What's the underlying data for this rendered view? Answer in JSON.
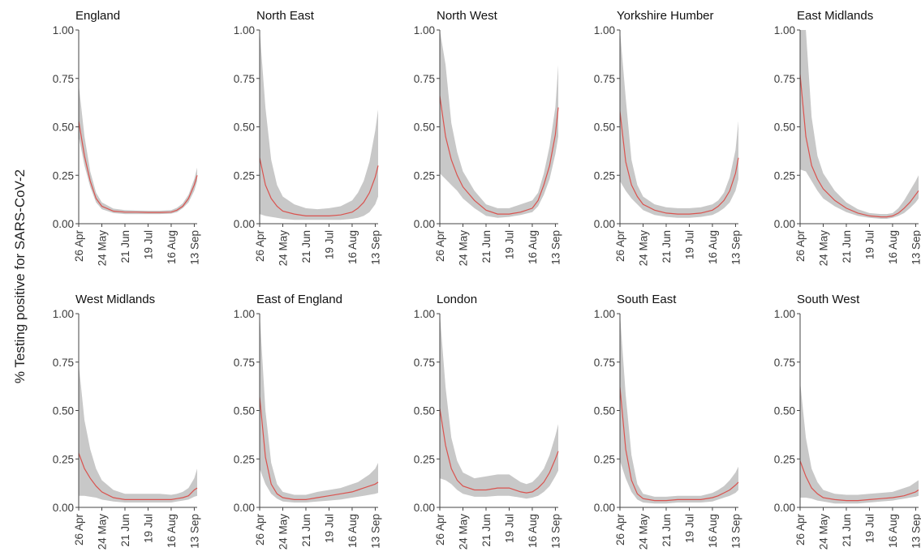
{
  "chart_data": {
    "type": "area",
    "ylabel": "% Testing positive for SARS-CoV-2",
    "ylim": [
      0,
      1
    ],
    "y_ticks": [
      "0.00",
      "0.25",
      "0.50",
      "0.75",
      "1.00"
    ],
    "x_tick_labels": [
      "26 Apr",
      "24 May",
      "21 Jun",
      "19 Jul",
      "16 Aug",
      "13 Sep"
    ],
    "x_tick_weeks": [
      0,
      4,
      8,
      12,
      16,
      20
    ],
    "x_range_weeks": [
      0,
      20.5
    ],
    "grid": false,
    "band_color": "#c8c8c8",
    "line_color": "#d9534f",
    "panels": [
      {
        "title": "England",
        "x": [
          0,
          1,
          2,
          3,
          4,
          6,
          8,
          10,
          12,
          14,
          16,
          17,
          18,
          19,
          20,
          20.5
        ],
        "y": [
          0.53,
          0.35,
          0.22,
          0.13,
          0.09,
          0.065,
          0.06,
          0.06,
          0.058,
          0.058,
          0.06,
          0.07,
          0.09,
          0.13,
          0.2,
          0.25
        ],
        "lower": [
          0.45,
          0.3,
          0.19,
          0.11,
          0.075,
          0.055,
          0.05,
          0.05,
          0.05,
          0.05,
          0.052,
          0.06,
          0.08,
          0.11,
          0.17,
          0.22
        ],
        "upper": [
          0.72,
          0.45,
          0.27,
          0.16,
          0.11,
          0.078,
          0.07,
          0.068,
          0.067,
          0.067,
          0.07,
          0.082,
          0.105,
          0.15,
          0.23,
          0.29
        ]
      },
      {
        "title": "North East",
        "x": [
          0,
          1,
          2,
          3,
          4,
          6,
          8,
          10,
          12,
          14,
          16,
          17,
          18,
          19,
          20,
          20.5
        ],
        "y": [
          0.34,
          0.2,
          0.13,
          0.09,
          0.065,
          0.05,
          0.04,
          0.04,
          0.04,
          0.045,
          0.06,
          0.08,
          0.11,
          0.16,
          0.24,
          0.3
        ],
        "lower": [
          0.05,
          0.04,
          0.035,
          0.03,
          0.025,
          0.02,
          0.02,
          0.02,
          0.02,
          0.02,
          0.025,
          0.03,
          0.04,
          0.06,
          0.1,
          0.14
        ],
        "upper": [
          1.0,
          0.6,
          0.33,
          0.2,
          0.14,
          0.1,
          0.08,
          0.075,
          0.08,
          0.09,
          0.12,
          0.16,
          0.22,
          0.32,
          0.48,
          0.59
        ]
      },
      {
        "title": "North West",
        "x": [
          0,
          1,
          2,
          3,
          4,
          6,
          8,
          10,
          12,
          14,
          16,
          17,
          18,
          19,
          20,
          20.5
        ],
        "y": [
          0.66,
          0.45,
          0.33,
          0.25,
          0.19,
          0.12,
          0.07,
          0.05,
          0.05,
          0.06,
          0.08,
          0.12,
          0.2,
          0.3,
          0.46,
          0.6
        ],
        "lower": [
          0.26,
          0.23,
          0.2,
          0.17,
          0.13,
          0.08,
          0.04,
          0.03,
          0.035,
          0.045,
          0.06,
          0.09,
          0.15,
          0.23,
          0.36,
          0.45
        ],
        "upper": [
          1.0,
          0.82,
          0.52,
          0.37,
          0.27,
          0.17,
          0.1,
          0.08,
          0.08,
          0.1,
          0.12,
          0.16,
          0.26,
          0.4,
          0.6,
          0.82
        ]
      },
      {
        "title": "Yorkshire Humber",
        "x": [
          0,
          1,
          2,
          3,
          4,
          6,
          8,
          10,
          12,
          14,
          16,
          17,
          18,
          19,
          20,
          20.5
        ],
        "y": [
          0.58,
          0.32,
          0.2,
          0.14,
          0.1,
          0.07,
          0.055,
          0.05,
          0.05,
          0.055,
          0.07,
          0.09,
          0.12,
          0.17,
          0.26,
          0.34
        ],
        "lower": [
          0.22,
          0.17,
          0.13,
          0.1,
          0.07,
          0.045,
          0.035,
          0.03,
          0.03,
          0.035,
          0.045,
          0.06,
          0.08,
          0.11,
          0.17,
          0.23
        ],
        "upper": [
          1.0,
          0.65,
          0.33,
          0.2,
          0.14,
          0.1,
          0.085,
          0.08,
          0.08,
          0.085,
          0.1,
          0.12,
          0.16,
          0.24,
          0.38,
          0.53
        ]
      },
      {
        "title": "East Midlands",
        "x": [
          0,
          1,
          2,
          3,
          4,
          6,
          8,
          10,
          12,
          14,
          15,
          16,
          17,
          18,
          19,
          20,
          20.5
        ],
        "y": [
          0.77,
          0.45,
          0.3,
          0.23,
          0.18,
          0.12,
          0.08,
          0.055,
          0.04,
          0.035,
          0.035,
          0.04,
          0.055,
          0.08,
          0.11,
          0.15,
          0.17
        ],
        "lower": [
          0.28,
          0.27,
          0.22,
          0.17,
          0.13,
          0.09,
          0.06,
          0.04,
          0.03,
          0.025,
          0.025,
          0.03,
          0.04,
          0.055,
          0.08,
          0.11,
          0.13
        ],
        "upper": [
          1.0,
          1.0,
          0.55,
          0.35,
          0.26,
          0.17,
          0.11,
          0.075,
          0.055,
          0.05,
          0.05,
          0.055,
          0.08,
          0.12,
          0.17,
          0.22,
          0.25
        ]
      },
      {
        "title": "West Midlands",
        "x": [
          0,
          1,
          2,
          3,
          4,
          6,
          8,
          10,
          12,
          14,
          16,
          17,
          18,
          19,
          20,
          20.5
        ],
        "y": [
          0.28,
          0.2,
          0.15,
          0.11,
          0.08,
          0.05,
          0.04,
          0.04,
          0.04,
          0.04,
          0.04,
          0.045,
          0.05,
          0.06,
          0.09,
          0.1
        ],
        "lower": [
          0.06,
          0.06,
          0.055,
          0.05,
          0.04,
          0.03,
          0.025,
          0.025,
          0.025,
          0.025,
          0.025,
          0.03,
          0.035,
          0.04,
          0.055,
          0.06
        ],
        "upper": [
          0.74,
          0.45,
          0.3,
          0.2,
          0.14,
          0.09,
          0.07,
          0.07,
          0.07,
          0.07,
          0.065,
          0.07,
          0.08,
          0.1,
          0.15,
          0.2
        ]
      },
      {
        "title": "East of England",
        "x": [
          0,
          1,
          2,
          3,
          4,
          6,
          8,
          10,
          12,
          14,
          16,
          17,
          18,
          19,
          20,
          20.5
        ],
        "y": [
          0.57,
          0.26,
          0.12,
          0.07,
          0.05,
          0.04,
          0.04,
          0.05,
          0.06,
          0.07,
          0.08,
          0.09,
          0.1,
          0.11,
          0.12,
          0.13
        ],
        "lower": [
          0.2,
          0.12,
          0.07,
          0.045,
          0.03,
          0.025,
          0.025,
          0.03,
          0.035,
          0.04,
          0.05,
          0.055,
          0.06,
          0.065,
          0.07,
          0.075
        ],
        "upper": [
          1.0,
          0.5,
          0.23,
          0.12,
          0.08,
          0.065,
          0.065,
          0.08,
          0.09,
          0.1,
          0.12,
          0.13,
          0.15,
          0.17,
          0.2,
          0.23
        ]
      },
      {
        "title": "London",
        "x": [
          0,
          1,
          2,
          3,
          4,
          6,
          8,
          10,
          12,
          14,
          15,
          16,
          17,
          18,
          19,
          20,
          20.5
        ],
        "y": [
          0.51,
          0.32,
          0.2,
          0.14,
          0.11,
          0.09,
          0.09,
          0.1,
          0.1,
          0.08,
          0.075,
          0.08,
          0.1,
          0.13,
          0.18,
          0.25,
          0.29
        ],
        "lower": [
          0.15,
          0.14,
          0.12,
          0.09,
          0.07,
          0.055,
          0.055,
          0.06,
          0.06,
          0.05,
          0.045,
          0.05,
          0.06,
          0.08,
          0.11,
          0.16,
          0.19
        ],
        "upper": [
          1.0,
          0.62,
          0.36,
          0.24,
          0.18,
          0.15,
          0.16,
          0.17,
          0.17,
          0.13,
          0.12,
          0.13,
          0.16,
          0.2,
          0.27,
          0.37,
          0.43
        ]
      },
      {
        "title": "South East",
        "x": [
          0,
          1,
          2,
          3,
          4,
          6,
          8,
          10,
          12,
          14,
          16,
          17,
          18,
          19,
          20,
          20.5
        ],
        "y": [
          0.62,
          0.3,
          0.14,
          0.07,
          0.045,
          0.035,
          0.035,
          0.04,
          0.04,
          0.04,
          0.05,
          0.06,
          0.075,
          0.09,
          0.115,
          0.13
        ],
        "lower": [
          0.24,
          0.15,
          0.08,
          0.04,
          0.025,
          0.02,
          0.02,
          0.025,
          0.025,
          0.025,
          0.03,
          0.04,
          0.05,
          0.06,
          0.075,
          0.09
        ],
        "upper": [
          1.0,
          0.58,
          0.27,
          0.12,
          0.07,
          0.055,
          0.055,
          0.06,
          0.06,
          0.06,
          0.075,
          0.09,
          0.11,
          0.14,
          0.18,
          0.21
        ]
      },
      {
        "title": "South West",
        "x": [
          0,
          1,
          2,
          3,
          4,
          6,
          8,
          10,
          12,
          14,
          16,
          17,
          18,
          19,
          20,
          20.5
        ],
        "y": [
          0.24,
          0.16,
          0.1,
          0.07,
          0.05,
          0.04,
          0.035,
          0.035,
          0.04,
          0.045,
          0.05,
          0.055,
          0.06,
          0.07,
          0.08,
          0.09
        ],
        "lower": [
          0.05,
          0.05,
          0.045,
          0.035,
          0.03,
          0.02,
          0.02,
          0.02,
          0.025,
          0.03,
          0.035,
          0.04,
          0.045,
          0.05,
          0.055,
          0.06
        ],
        "upper": [
          0.65,
          0.36,
          0.2,
          0.13,
          0.09,
          0.07,
          0.065,
          0.065,
          0.07,
          0.075,
          0.08,
          0.09,
          0.1,
          0.11,
          0.13,
          0.14
        ]
      }
    ]
  }
}
